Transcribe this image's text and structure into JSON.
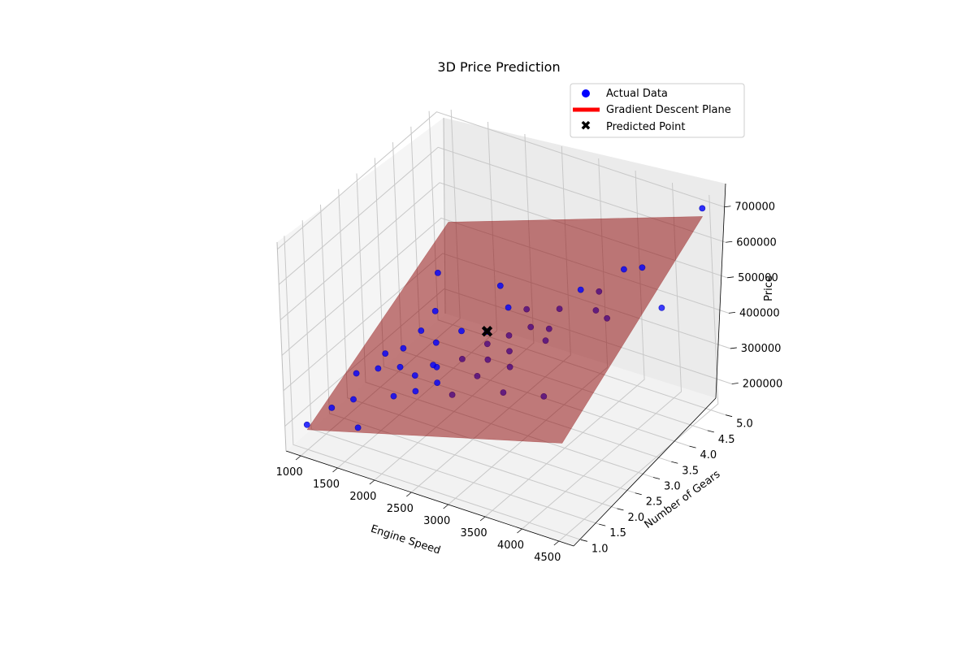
{
  "chart_data": {
    "type": "scatter",
    "subtype": "3d-scatter-with-regression-plane",
    "title": "3D Price Prediction",
    "xlabel": "Engine Speed",
    "ylabel": "Number of Gears",
    "zlabel": "Price",
    "xlim": [
      800,
      4700
    ],
    "ylim": [
      0.8,
      5.2
    ],
    "zlim": [
      130000,
      720000
    ],
    "x_ticks": [
      "1000",
      "1500",
      "2000",
      "2500",
      "3000",
      "3500",
      "4000",
      "4500"
    ],
    "y_ticks": [
      "1.0",
      "1.5",
      "2.0",
      "2.5",
      "3.0",
      "3.5",
      "4.0",
      "4.5",
      "5.0"
    ],
    "z_ticks": [
      "200000",
      "300000",
      "400000",
      "500000",
      "600000",
      "700000"
    ],
    "grid": true,
    "legend": {
      "position": "top-right",
      "entries": [
        "Actual Data",
        "Gradient Descent Plane",
        "Predicted Point"
      ]
    },
    "colors": {
      "actual": "#0000ff",
      "plane": "#8b0000",
      "legend_plane": "#ff0000",
      "predicted": "#000000"
    },
    "series": [
      {
        "name": "Actual Data",
        "points": [
          [
            1000,
            1.0,
            200000
          ],
          [
            1300,
            1.1,
            260000
          ],
          [
            1500,
            1.3,
            280000
          ],
          [
            1700,
            1.0,
            240000
          ],
          [
            1400,
            1.6,
            320000
          ],
          [
            1600,
            1.8,
            330000
          ],
          [
            1800,
            2.0,
            330000
          ],
          [
            1700,
            2.3,
            350000
          ],
          [
            2000,
            2.0,
            320000
          ],
          [
            2200,
            2.2,
            340000
          ],
          [
            1800,
            2.6,
            380000
          ],
          [
            1600,
            3.5,
            450000
          ],
          [
            2400,
            2.5,
            350000
          ],
          [
            2600,
            2.8,
            380000
          ],
          [
            2500,
            3.0,
            390000
          ],
          [
            2800,
            3.0,
            400000
          ],
          [
            3000,
            3.2,
            420000
          ],
          [
            2800,
            3.5,
            430000
          ],
          [
            3200,
            3.6,
            450000
          ],
          [
            3400,
            3.8,
            500000
          ],
          [
            3600,
            3.9,
            500000
          ],
          [
            3700,
            3.6,
            480000
          ],
          [
            3900,
            3.5,
            480000
          ],
          [
            3800,
            4.2,
            550000
          ],
          [
            4000,
            4.3,
            560000
          ],
          [
            3500,
            2.5,
            320000
          ],
          [
            4400,
            4.0,
            500000
          ],
          [
            4500,
            5.0,
            700000
          ],
          [
            2100,
            1.8,
            300000
          ],
          [
            2300,
            2.0,
            320000
          ],
          [
            2700,
            2.3,
            340000
          ],
          [
            3000,
            2.6,
            360000
          ],
          [
            3100,
            2.2,
            330000
          ],
          [
            3300,
            3.0,
            420000
          ],
          [
            2000,
            2.6,
            360000
          ],
          [
            2200,
            2.9,
            380000
          ],
          [
            2500,
            2.0,
            300000
          ],
          [
            1900,
            1.6,
            290000
          ],
          [
            1500,
            2.2,
            330000
          ],
          [
            2600,
            3.4,
            430000
          ],
          [
            2900,
            2.8,
            380000
          ],
          [
            3200,
            3.3,
            420000
          ],
          [
            2400,
            3.6,
            460000
          ],
          [
            1800,
            3.0,
            400000
          ],
          [
            2100,
            2.3,
            330000
          ],
          [
            2700,
            2.6,
            360000
          ]
        ]
      },
      {
        "name": "Predicted Point",
        "points": [
          [
            2500,
            3.0,
            390000
          ]
        ]
      }
    ],
    "plane": {
      "name": "Gradient Descent Plane",
      "corners": [
        [
          1000,
          1.0,
          186000
        ],
        [
          4500,
          1.0,
          389000
        ],
        [
          4500,
          5.0,
          677000
        ],
        [
          1000,
          5.0,
          420000
        ]
      ]
    }
  }
}
